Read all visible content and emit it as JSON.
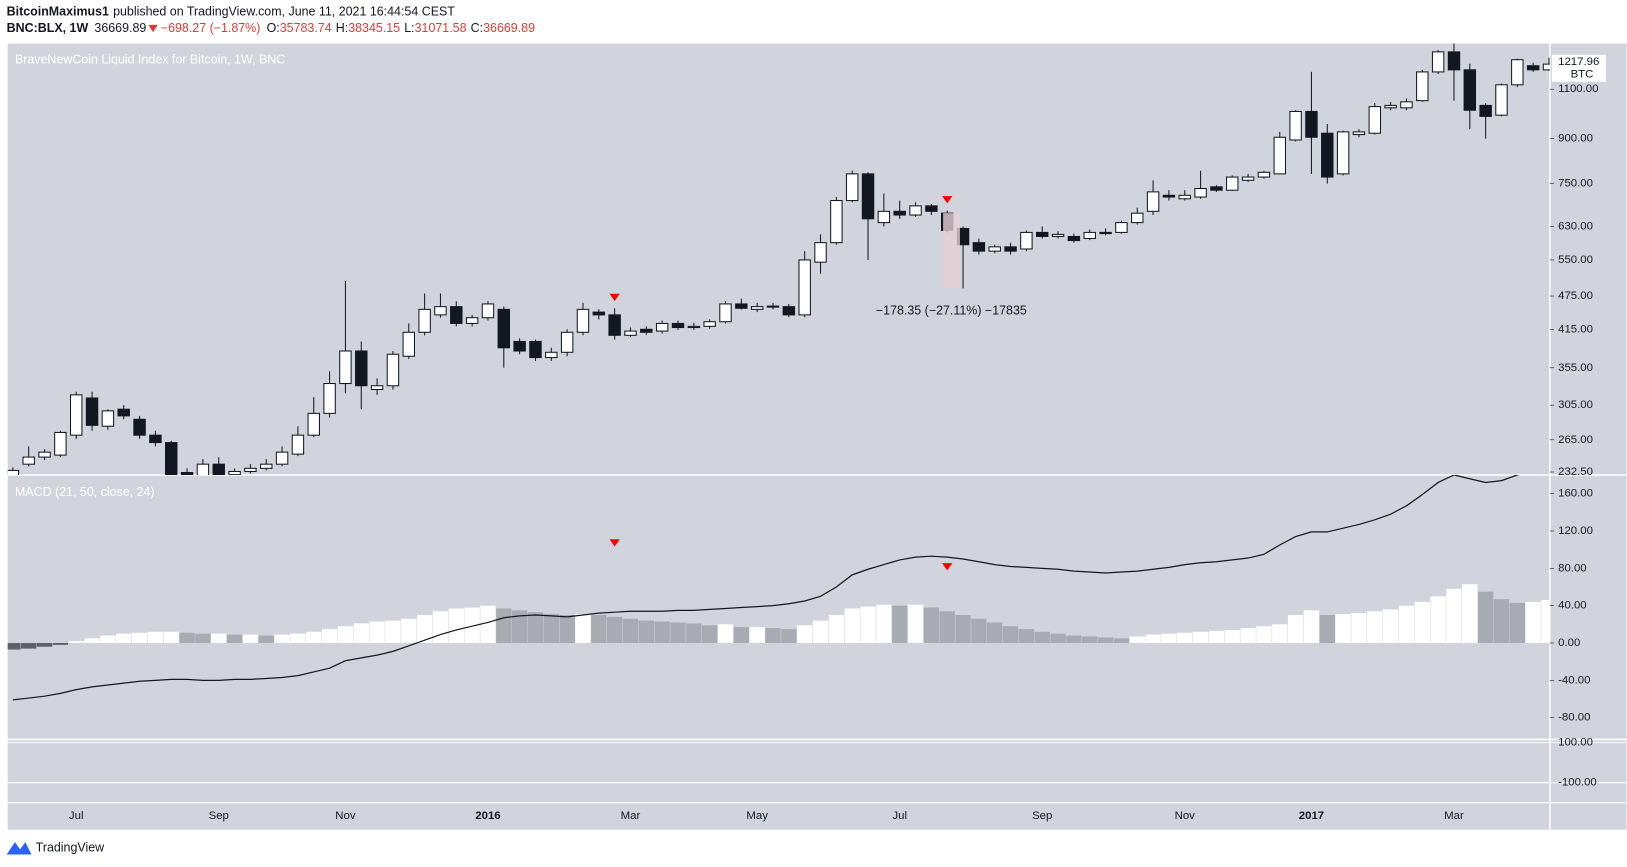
{
  "header": {
    "author": "BitcoinMaximus1",
    "published": "published on TradingView.com, June 11, 2021 16:44:54 CEST",
    "symbol": "BNC:BLX, 1W",
    "price": "36669.89",
    "change": "−698.27 (−1.87%)",
    "ohlc": [
      {
        "label": "O:",
        "value": "35783.74"
      },
      {
        "label": "H:",
        "value": "38345.15"
      },
      {
        "label": "L:",
        "value": "31071.58"
      },
      {
        "label": "C:",
        "value": "36669.89"
      }
    ]
  },
  "footer": {
    "brand": "TradingView"
  },
  "chart_data": [
    {
      "type": "candlestick",
      "title": "BraveNewCoin Liquid Index for Bitcoin, 1W, BNC",
      "categories": [
        null,
        null,
        null,
        null,
        "Jul",
        null,
        null,
        null,
        null,
        null,
        null,
        null,
        null,
        "Sep",
        null,
        null,
        null,
        null,
        null,
        null,
        null,
        "Nov",
        null,
        null,
        null,
        null,
        null,
        null,
        null,
        null,
        "2016",
        null,
        null,
        null,
        null,
        null,
        null,
        null,
        null,
        "Mar",
        null,
        null,
        null,
        null,
        null,
        null,
        null,
        "May",
        null,
        null,
        null,
        null,
        null,
        null,
        null,
        null,
        "Jul",
        null,
        null,
        null,
        null,
        null,
        null,
        null,
        null,
        "Sep",
        null,
        null,
        null,
        null,
        null,
        null,
        null,
        null,
        "Nov",
        null,
        null,
        null,
        null,
        null,
        null,
        null,
        "2017",
        null,
        null,
        null,
        null,
        null,
        null,
        null,
        null,
        "Mar",
        null,
        null,
        null,
        null,
        null,
        null
      ],
      "open": [
        228,
        240,
        247,
        249,
        270,
        314,
        280,
        300,
        288,
        270,
        262,
        232,
        228,
        240,
        230,
        233,
        236,
        240,
        250,
        270,
        295,
        333,
        380,
        325,
        330,
        372,
        410,
        440,
        455,
        425,
        435,
        450,
        395,
        395,
        370,
        378,
        410,
        445,
        440,
        405,
        415,
        412,
        425,
        418,
        420,
        428,
        460,
        450,
        455,
        455,
        440,
        545,
        590,
        700,
        780,
        640,
        670,
        660,
        685,
        665,
        625,
        590,
        570,
        580,
        575,
        615,
        605,
        605,
        600,
        615,
        615,
        640,
        670,
        715,
        705,
        710,
        740,
        730,
        760,
        770,
        780,
        895,
        1005,
        920,
        780,
        915,
        920,
        1020,
        1020,
        1050,
        1180,
        1280,
        1190,
        1030,
        990,
        1120,
        1210,
        1190
      ],
      "high": [
        237,
        258,
        255,
        275,
        322,
        322,
        300,
        305,
        292,
        275,
        264,
        236,
        245,
        247,
        236,
        240,
        245,
        258,
        280,
        315,
        350,
        505,
        395,
        340,
        380,
        425,
        480,
        480,
        465,
        440,
        465,
        455,
        400,
        398,
        385,
        415,
        462,
        450,
        452,
        418,
        420,
        430,
        430,
        426,
        432,
        465,
        470,
        462,
        462,
        460,
        570,
        610,
        710,
        790,
        785,
        720,
        700,
        695,
        690,
        672,
        630,
        600,
        585,
        590,
        620,
        630,
        618,
        612,
        622,
        625,
        645,
        680,
        760,
        730,
        730,
        790,
        745,
        775,
        780,
        790,
        925,
        1010,
        1180,
        955,
        930,
        935,
        1040,
        1045,
        1060,
        1190,
        1290,
        1330,
        1220,
        1040,
        1125,
        1245,
        1225,
        1250
      ],
      "low": [
        226,
        238,
        244,
        247,
        266,
        275,
        276,
        288,
        266,
        258,
        225,
        226,
        226,
        228,
        228,
        231,
        234,
        238,
        248,
        268,
        290,
        320,
        300,
        318,
        325,
        368,
        405,
        435,
        420,
        420,
        430,
        355,
        375,
        365,
        365,
        372,
        405,
        432,
        398,
        402,
        406,
        408,
        414,
        414,
        416,
        425,
        450,
        445,
        450,
        436,
        436,
        520,
        585,
        695,
        550,
        630,
        650,
        655,
        660,
        615,
        490,
        562,
        565,
        562,
        570,
        600,
        600,
        590,
        596,
        608,
        612,
        635,
        660,
        700,
        700,
        705,
        725,
        728,
        755,
        765,
        778,
        890,
        780,
        750,
        775,
        905,
        915,
        1010,
        1010,
        1045,
        1170,
        1050,
        935,
        900,
        985,
        1110,
        1180,
        1185
      ],
      "close": [
        234,
        247,
        252,
        273,
        318,
        281,
        298,
        292,
        270,
        262,
        230,
        228,
        240,
        230,
        233,
        236,
        240,
        252,
        270,
        295,
        333,
        380,
        330,
        330,
        375,
        410,
        450,
        455,
        425,
        435,
        460,
        385,
        380,
        370,
        378,
        410,
        450,
        440,
        405,
        412,
        410,
        425,
        418,
        420,
        428,
        460,
        452,
        455,
        456,
        440,
        550,
        590,
        700,
        780,
        650,
        670,
        660,
        685,
        670,
        620,
        585,
        570,
        580,
        570,
        615,
        605,
        610,
        595,
        615,
        612,
        640,
        665,
        725,
        710,
        715,
        735,
        730,
        770,
        770,
        785,
        905,
        1005,
        905,
        770,
        925,
        925,
        1025,
        1030,
        1045,
        1180,
        1280,
        1190,
        1010,
        985,
        1120,
        1240,
        1190,
        1217.96
      ],
      "log_scale": true,
      "ylim": [
        229.7,
        1324
      ],
      "yticks": [
        {
          "value": 232.5,
          "label": "232.50"
        },
        {
          "value": 265,
          "label": "265.00"
        },
        {
          "value": 305,
          "label": "305.00"
        },
        {
          "value": 355,
          "label": "355.00"
        },
        {
          "value": 415,
          "label": "415.00"
        },
        {
          "value": 475,
          "label": "475.00"
        },
        {
          "value": 550,
          "label": "550.00"
        },
        {
          "value": 630,
          "label": "630.00"
        },
        {
          "value": 750,
          "label": "750.00"
        },
        {
          "value": 900,
          "label": "900.00"
        },
        {
          "value": 1100,
          "label": "1100.00"
        }
      ],
      "grid": false,
      "up_color": "#ffffff",
      "down_color": "#131722",
      "currency": "BTC",
      "signals": [
        38,
        59
      ],
      "signal_color": "#ff0000",
      "annotation": "−178.35 (−27.11%) −17835"
    },
    {
      "type": "macd",
      "title": "MACD (21, 50, close, 24)",
      "series": [
        {
          "kind": "histogram",
          "colors": {
            "rising": "#ffffff",
            "falling": "#a9abb3",
            "negative": "#5d606b"
          },
          "values": [
            -7,
            -6,
            -4,
            -2,
            2,
            5,
            8,
            10,
            11,
            12,
            12,
            11,
            10,
            10,
            9,
            9,
            8,
            9,
            10,
            12,
            15,
            18,
            21,
            23,
            24,
            26,
            30,
            34,
            37,
            38,
            40,
            37,
            35,
            33,
            31,
            30,
            31,
            30,
            28,
            26,
            24,
            23,
            22,
            21,
            19,
            20,
            17,
            17,
            16,
            15,
            19,
            24,
            30,
            37,
            39,
            41,
            40,
            41,
            38,
            34,
            30,
            26,
            22,
            18,
            15,
            12,
            10,
            8,
            7,
            6,
            5,
            7,
            9,
            10,
            11,
            12,
            13,
            14,
            16,
            18,
            20,
            30,
            35,
            30,
            31,
            32,
            34,
            36,
            40,
            44,
            50,
            58,
            63,
            55,
            47,
            43,
            44,
            46
          ]
        },
        {
          "kind": "line",
          "color": "#131722",
          "values": [
            -61,
            -59,
            -57,
            -54,
            -50,
            -47,
            -45,
            -43,
            -41,
            -40,
            -39,
            -39,
            -40,
            -40,
            -39,
            -39,
            -38,
            -37,
            -35,
            -31,
            -27,
            -19,
            -16,
            -13,
            -9,
            -3,
            3,
            9,
            14,
            18,
            22,
            27,
            29,
            30,
            29,
            28,
            30,
            32,
            33,
            34,
            34,
            34,
            35,
            35,
            36,
            37,
            38,
            39,
            40,
            42,
            45,
            50,
            60,
            73,
            79,
            84,
            89,
            92,
            93,
            92,
            90,
            87,
            84,
            82,
            81,
            80,
            79,
            77,
            76,
            75,
            76,
            77,
            79,
            81,
            84,
            86,
            87,
            89,
            91,
            95,
            105,
            114,
            119,
            119,
            123,
            127,
            132,
            138,
            147,
            159,
            172,
            180,
            176,
            172,
            174,
            180,
            185,
            190
          ]
        }
      ],
      "ylim": [
        -103.3,
        180
      ],
      "yticks": [
        {
          "value": 160,
          "label": "160.00"
        },
        {
          "value": 120,
          "label": "120.00"
        },
        {
          "value": 80,
          "label": "80.00"
        },
        {
          "value": 40,
          "label": "40.00"
        },
        {
          "value": 0,
          "label": "0.00"
        },
        {
          "value": -40,
          "label": "-40.00"
        },
        {
          "value": -80,
          "label": "-80.00"
        }
      ],
      "grid": false,
      "signals": [
        38,
        59
      ],
      "signal_color": "#ff0000"
    },
    {
      "type": "empty",
      "ylim": [
        -200,
        116
      ],
      "yticks": [
        {
          "value": 100,
          "label": "100.00"
        },
        {
          "value": -100,
          "label": "-100.00"
        }
      ],
      "grid": true
    }
  ]
}
